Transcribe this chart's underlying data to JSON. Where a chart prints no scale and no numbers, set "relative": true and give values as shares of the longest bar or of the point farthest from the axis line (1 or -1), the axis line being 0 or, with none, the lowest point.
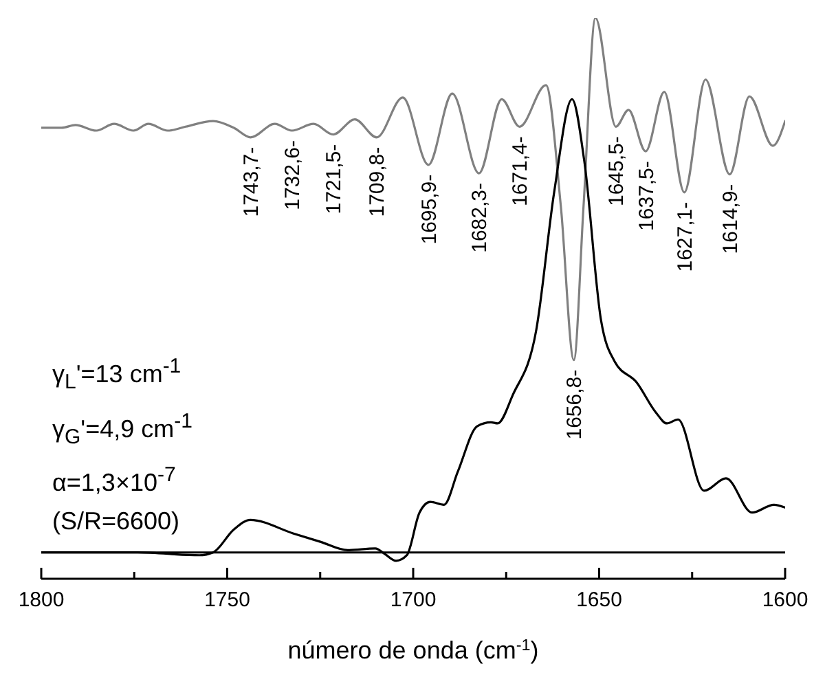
{
  "chart_data": {
    "type": "line",
    "relative": true,
    "xlabel": "número de onda (cm$^{-1}$)",
    "xlim": [
      1800,
      1600
    ],
    "xticks": [
      1800,
      {
        "value": 1775,
        "label": null
      },
      1750,
      {
        "value": 1725,
        "label": null
      },
      1700,
      {
        "value": 1675,
        "label": null
      },
      1650,
      {
        "value": 1625,
        "label": null
      },
      1600
    ],
    "marker": "none",
    "line_style": "solid",
    "series": [
      {
        "color": "#808080",
        "x": [
          1800,
          1794.5,
          1790.8,
          1785.2,
          1780.4,
          1775.2,
          1771.2,
          1766.0,
          1761.2,
          1753.8,
          1748.2,
          1743.7,
          1737.2,
          1732.6,
          1726.8,
          1721.5,
          1715.7,
          1709.8,
          1702.8,
          1695.9,
          1689.5,
          1682.3,
          1676.2,
          1671.4,
          1664.3,
          1660.3,
          1656.8,
          1654.2,
          1651.0,
          1645.5,
          1642.1,
          1637.5,
          1632.5,
          1627.1,
          1621.4,
          1614.9,
          1609.6,
          1603.3,
          1600
        ],
        "values": [
          0.804,
          0.804,
          0.809,
          0.799,
          0.811,
          0.799,
          0.811,
          0.799,
          0.806,
          0.816,
          0.804,
          0.787,
          0.811,
          0.799,
          0.811,
          0.792,
          0.819,
          0.787,
          0.858,
          0.738,
          0.865,
          0.723,
          0.855,
          0.806,
          0.88,
          0.664,
          0.39,
          0.664,
          1.0,
          0.806,
          0.836,
          0.762,
          0.868,
          0.689,
          0.89,
          0.721,
          0.86,
          0.772,
          0.816
        ]
      },
      {
        "color": "#000000",
        "x": [
          1800,
          1774.1,
          1757.5,
          1753.8,
          1748.2,
          1743.8,
          1732.3,
          1725.0,
          1717.6,
          1710.2,
          1707.6,
          1704.6,
          1701.7,
          1698.3,
          1695.4,
          1691.7,
          1688.0,
          1682.8,
          1679.1,
          1677.3,
          1673.2,
          1666.9,
          1662.1,
          1657.3,
          1654.0,
          1649.5,
          1645.8,
          1639.9,
          1634.8,
          1631.8,
          1628.8,
          1621.8,
          1615.9,
          1608.9,
          1603.0,
          1600
        ],
        "values": [
          0.047,
          0.047,
          0.042,
          0.047,
          0.088,
          0.105,
          0.081,
          0.066,
          0.051,
          0.054,
          0.044,
          0.032,
          0.042,
          0.118,
          0.137,
          0.132,
          0.191,
          0.272,
          0.279,
          0.277,
          0.328,
          0.444,
          0.689,
          0.855,
          0.745,
          0.461,
          0.387,
          0.35,
          0.297,
          0.277,
          0.284,
          0.157,
          0.179,
          0.118,
          0.132,
          0.127
        ]
      }
    ],
    "ref_lines": [
      {
        "axis": "y",
        "value": 0.047,
        "color": "#000000"
      }
    ],
    "annotations": [
      {
        "text": "1743,7-",
        "x": 1743.7,
        "y": 0.787
      },
      {
        "text": "1732,6-",
        "x": 1732.6,
        "y": 0.799
      },
      {
        "text": "1721,5-",
        "x": 1721.5,
        "y": 0.792
      },
      {
        "text": "1709,8-",
        "x": 1709.8,
        "y": 0.787
      },
      {
        "text": "1695,9-",
        "x": 1695.9,
        "y": 0.738
      },
      {
        "text": "1682,3-",
        "x": 1682.3,
        "y": 0.723
      },
      {
        "text": "1671,4-",
        "x": 1671.4,
        "y": 0.806
      },
      {
        "text": "1656,8-",
        "x": 1656.8,
        "y": 0.39
      },
      {
        "text": "1645,5-",
        "x": 1645.5,
        "y": 0.806
      },
      {
        "text": "1637,5-",
        "x": 1637.5,
        "y": 0.762
      },
      {
        "text": "1627,1-",
        "x": 1627.1,
        "y": 0.689
      },
      {
        "text": "1614,9-",
        "x": 1614.9,
        "y": 0.721
      },
      "γ$_{L}$'=13 cm$^{-1}$",
      "γ$_{G}$'=4,9 cm$^{-1}$",
      "α=1,3×10$^{-7}$",
      "(S/R=6600)"
    ]
  }
}
